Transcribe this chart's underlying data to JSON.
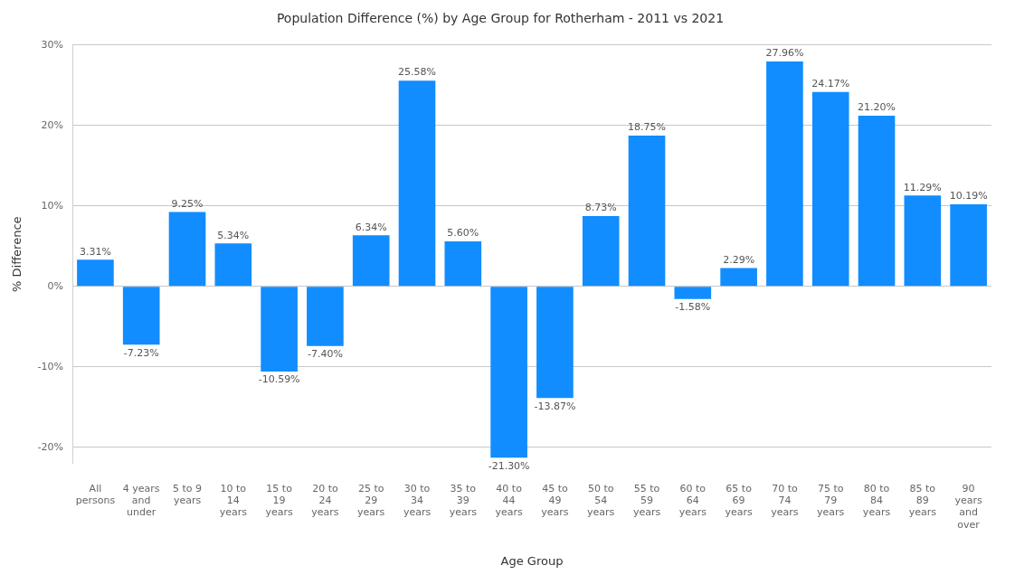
{
  "chart_data": {
    "type": "bar",
    "title": "Population Difference (%) by Age Group for Rotherham - 2011 vs 2021",
    "xlabel": "Age Group",
    "ylabel": "% Difference",
    "categories": [
      "All persons",
      "4 years and under",
      "5 to 9 years",
      "10 to 14 years",
      "15 to 19 years",
      "20 to 24 years",
      "25 to 29 years",
      "30 to 34 years",
      "35 to 39 years",
      "40 to 44 years",
      "45 to 49 years",
      "50 to 54 years",
      "55 to 59 years",
      "60 to 64 years",
      "65 to 69 years",
      "70 to 74 years",
      "75 to 79 years",
      "80 to 84 years",
      "85 to 89 years",
      "90 years and over"
    ],
    "values": [
      3.31,
      -7.23,
      9.25,
      5.34,
      -10.59,
      -7.4,
      6.34,
      25.58,
      5.6,
      -21.3,
      -13.87,
      8.73,
      18.75,
      -1.58,
      2.29,
      27.96,
      24.17,
      21.2,
      11.29,
      10.19
    ],
    "value_labels": [
      "3.31%",
      "-7.23%",
      "9.25%",
      "5.34%",
      "-10.59%",
      "-7.40%",
      "6.34%",
      "25.58%",
      "5.60%",
      "-21.30%",
      "-13.87%",
      "8.73%",
      "18.75%",
      "-1.58%",
      "2.29%",
      "27.96%",
      "24.17%",
      "21.20%",
      "11.29%",
      "10.19%"
    ],
    "color": "#118dff",
    "ylim": [
      -22,
      30
    ],
    "yticks": [
      {
        "value": -20,
        "label": "-20%"
      },
      {
        "value": -10,
        "label": "-10%"
      },
      {
        "value": 0,
        "label": "0%"
      },
      {
        "value": 10,
        "label": "10%"
      },
      {
        "value": 20,
        "label": "20%"
      },
      {
        "value": 30,
        "label": "30%"
      }
    ],
    "grid": "y",
    "legend": false
  }
}
